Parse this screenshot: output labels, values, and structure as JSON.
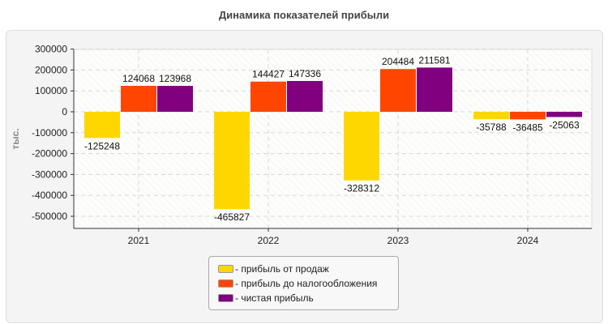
{
  "chart_data": {
    "type": "bar",
    "title": "Динамика показателей прибыли",
    "ylabel": "тыс.",
    "xlabel": "",
    "categories": [
      "2021",
      "2022",
      "2023",
      "2024"
    ],
    "series": [
      {
        "name": "- прибыль от продаж",
        "color": "#ffd700",
        "values": [
          -125248,
          -465827,
          -328312,
          -35788
        ]
      },
      {
        "name": "- прибыль до налогообложения",
        "color": "#ff4500",
        "values": [
          124068,
          144427,
          204484,
          -36485
        ]
      },
      {
        "name": "- чистая прибыль",
        "color": "#800080",
        "values": [
          123968,
          147336,
          211581,
          -25063
        ]
      }
    ],
    "yticks": [
      "300000",
      "200000",
      "100000",
      "0",
      "-100000",
      "-200000",
      "-300000",
      "-400000",
      "-500000"
    ],
    "ylim": [
      -560000,
      300000
    ],
    "grid": true,
    "legend": "bottom"
  }
}
